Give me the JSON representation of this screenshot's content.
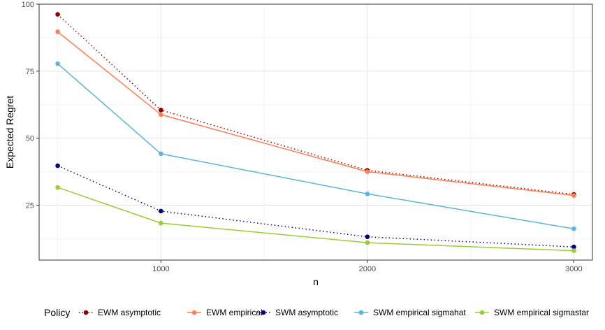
{
  "chart_data": {
    "type": "line",
    "xlabel": "n",
    "ylabel": "Expected Regret",
    "xlim": [
      410,
      3090
    ],
    "ylim": [
      4.5,
      100
    ],
    "x_ticks": [
      1000,
      2000,
      3000
    ],
    "y_ticks": [
      25,
      50,
      75,
      100
    ],
    "x_minor": [
      500,
      1500,
      2500
    ],
    "y_minor": [
      12.5,
      37.5,
      62.5,
      87.5
    ],
    "grid": true,
    "legend_position": "bottom",
    "legend_title": "Policy",
    "x": [
      500,
      1000,
      2000,
      3000
    ],
    "series": [
      {
        "name": "EWM asymptotic",
        "values": [
          96.2,
          60.5,
          38.0,
          29.0
        ],
        "color": "#8b0000",
        "dash": "dotted"
      },
      {
        "name": "EWM empirical",
        "values": [
          89.7,
          58.8,
          37.5,
          28.6
        ],
        "color": "#ff7f50",
        "dash": "solid"
      },
      {
        "name": "SWM asymptotic",
        "values": [
          39.7,
          22.8,
          13.2,
          9.4
        ],
        "color": "#000080",
        "dash": "dotted"
      },
      {
        "name": "SWM empirical sigmahat",
        "values": [
          77.8,
          44.2,
          29.2,
          16.2
        ],
        "color": "#5ab4e0",
        "dash": "solid"
      },
      {
        "name": "SWM empirical sigmastar",
        "values": [
          31.6,
          18.3,
          11.0,
          8.0
        ],
        "color": "#9acd32",
        "dash": "solid"
      }
    ]
  }
}
